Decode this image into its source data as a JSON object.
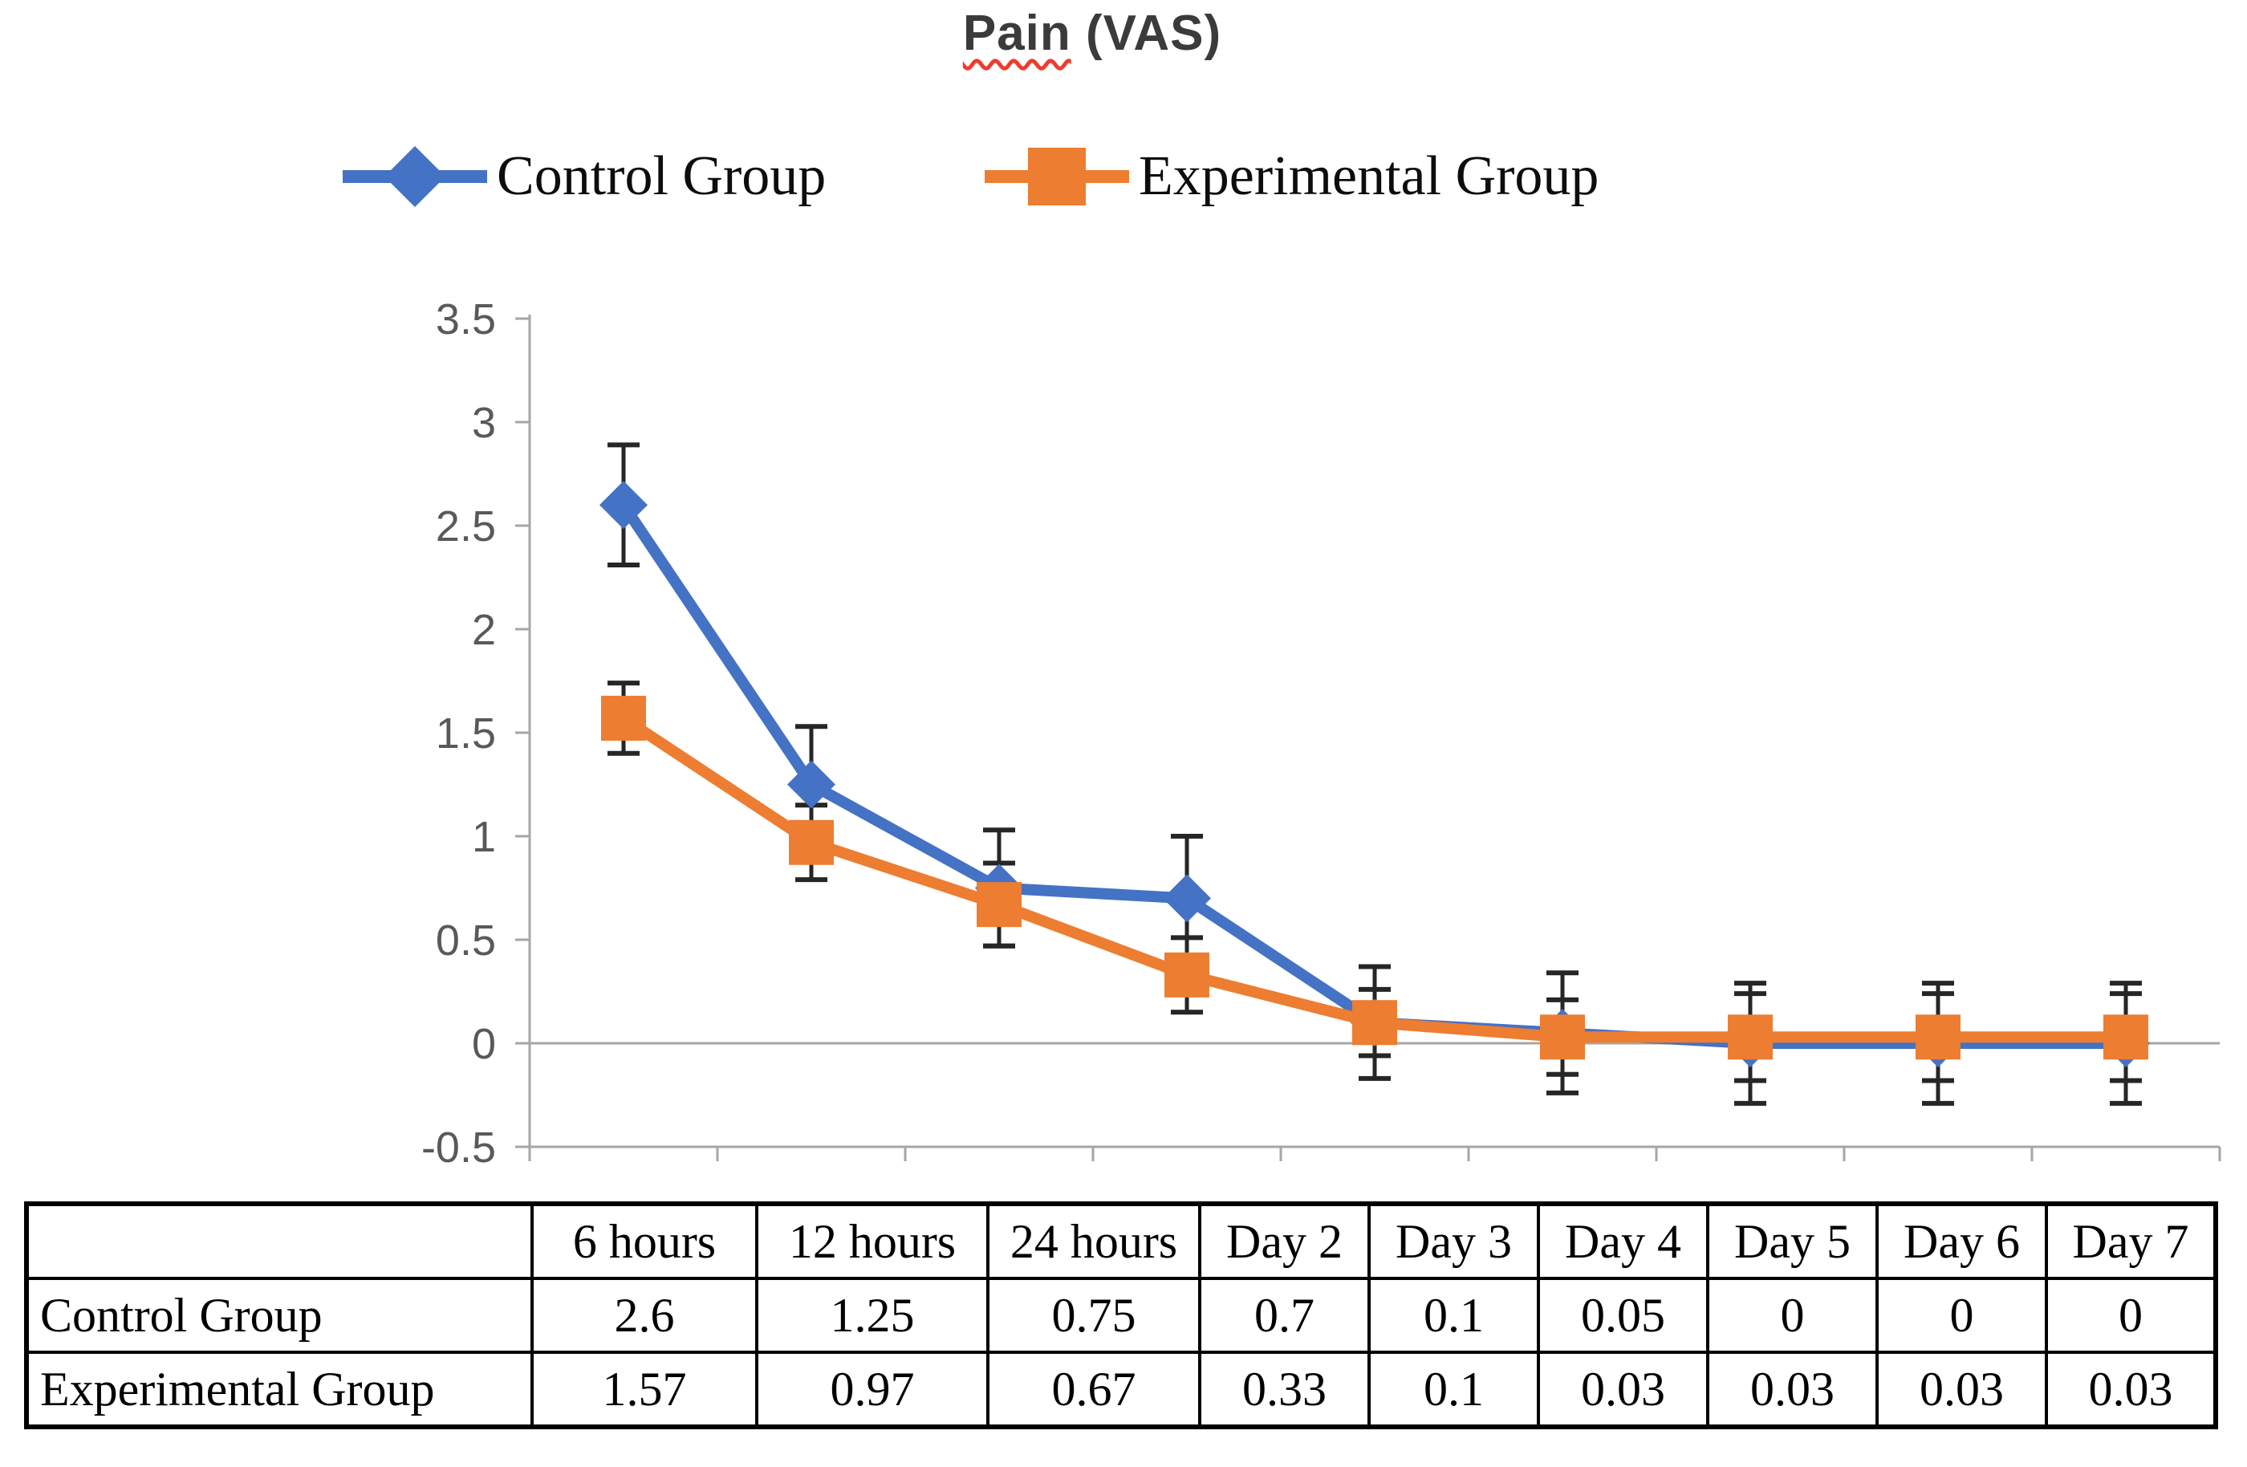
{
  "title": {
    "underlined_word": "Pain",
    "rest": " (VAS)"
  },
  "legend": {
    "items": [
      {
        "label": "Control Group",
        "marker": "diamond-marker",
        "color": "#4472C4"
      },
      {
        "label": "Experimental Group",
        "marker": "square-marker",
        "color": "#ED7D31"
      }
    ]
  },
  "axes": {
    "y_tick_labels": [
      "3.5",
      "3",
      "2.5",
      "2",
      "1.5",
      "1",
      "0.5",
      "0",
      "-0.5"
    ]
  },
  "chart_data": {
    "type": "line",
    "title": "Pain (VAS)",
    "categories": [
      "6 hours",
      "12 hours",
      "24 hours",
      "Day 2",
      "Day 3",
      "Day 4",
      "Day 5",
      "Day 6",
      "Day 7"
    ],
    "series": [
      {
        "name": "Control Group",
        "color": "#4472C4",
        "marker": "diamond",
        "values": [
          2.6,
          1.25,
          0.75,
          0.7,
          0.1,
          0.05,
          0,
          0,
          0
        ],
        "error_bars": [
          0.29,
          0.28,
          0.28,
          0.3,
          0.27,
          0.29,
          0.29,
          0.29,
          0.29
        ]
      },
      {
        "name": "Experimental Group",
        "color": "#ED7D31",
        "marker": "square",
        "values": [
          1.57,
          0.97,
          0.67,
          0.33,
          0.1,
          0.03,
          0.03,
          0.03,
          0.03
        ],
        "error_bars": [
          0.17,
          0.18,
          0.2,
          0.18,
          0.16,
          0.18,
          0.21,
          0.21,
          0.21
        ]
      }
    ],
    "ylim": [
      -0.5,
      3.5
    ],
    "y_tick_step": 0.5,
    "grid": false,
    "zero_line": true,
    "legend_position": "top",
    "xlabel": "",
    "ylabel": ""
  },
  "table": {
    "header": [
      "",
      "6 hours",
      "12 hours",
      "24 hours",
      "Day 2",
      "Day 3",
      "Day 4",
      "Day 5",
      "Day 6",
      "Day 7"
    ],
    "rows": [
      {
        "label": "Control Group",
        "values": [
          "2.6",
          "1.25",
          "0.75",
          "0.7",
          "0.1",
          "0.05",
          "0",
          "0",
          "0"
        ]
      },
      {
        "label": "Experimental Group",
        "values": [
          "1.57",
          "0.97",
          "0.67",
          "0.33",
          "0.1",
          "0.03",
          "0.03",
          "0.03",
          "0.03"
        ]
      }
    ]
  },
  "colors": {
    "control": "#4472C4",
    "experimental": "#ED7D31",
    "axis": "#A6A6A6",
    "zero_line": "#A6A6A6",
    "error_bar": "#262626",
    "y_tick_label": "#595959",
    "title_text": "#3B3B3B",
    "squiggle": "#EF3B2D",
    "table_border": "#000000",
    "background": "#FFFFFF"
  }
}
